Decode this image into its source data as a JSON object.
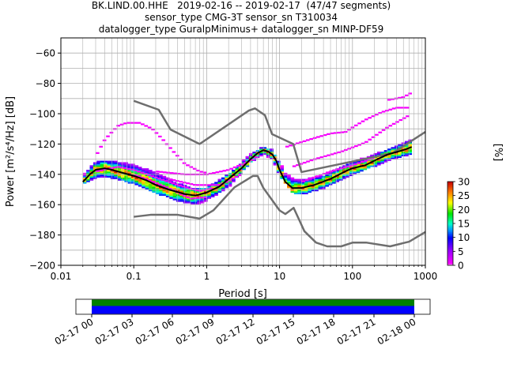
{
  "title_lines": [
    "BK.LIND.00.HHE   2019-02-16 -- 2019-02-17  (47/47 segments)",
    "sensor_type CMG-3T sensor_sn T310034",
    "datalogger_type GuralpMinimus+ datalogger_sn MINP-DF59"
  ],
  "colors": {
    "model_lines": "#6e6e6e",
    "mode_line": "#000000",
    "grid": "#b0b0b0",
    "coverage_data": "#0000ff",
    "coverage_used": "#008000"
  },
  "chart_data": {
    "type": "heatmap",
    "xlabel": "Period [s]",
    "ylabel": "Power [m²/s⁴/Hz] [dB]",
    "x_scale": "log",
    "xlim": [
      0.01,
      1000
    ],
    "ylim": [
      -200,
      -50
    ],
    "x_ticks": [
      {
        "value": 0.01,
        "label": "0.01"
      },
      {
        "value": 0.1,
        "label": "0.1"
      },
      {
        "value": 1,
        "label": "1"
      },
      {
        "value": 10,
        "label": "10"
      },
      {
        "value": 100,
        "label": "100"
      },
      {
        "value": 1000,
        "label": "1000"
      }
    ],
    "y_ticks": [
      -60,
      -80,
      -100,
      -120,
      -140,
      -160,
      -180,
      -200
    ],
    "grid": true,
    "colorbar": {
      "label": "[%]",
      "range": [
        0,
        30
      ],
      "ticks": [
        0,
        5,
        10,
        15,
        20,
        25,
        30
      ]
    },
    "noise_models": {
      "high": [
        [
          0.1,
          -91.5
        ],
        [
          0.22,
          -97.4
        ],
        [
          0.32,
          -110.5
        ],
        [
          0.8,
          -120
        ],
        [
          3.8,
          -97.9
        ],
        [
          4.6,
          -96.5
        ],
        [
          6.3,
          -101
        ],
        [
          7.9,
          -113.5
        ],
        [
          15.4,
          -120
        ],
        [
          20,
          -138.5
        ],
        [
          354.8,
          -126
        ],
        [
          1000,
          -112
        ]
      ],
      "low": [
        [
          0.1,
          -168
        ],
        [
          0.17,
          -166.7
        ],
        [
          0.4,
          -166.7
        ],
        [
          0.8,
          -169.2
        ],
        [
          1.24,
          -163.7
        ],
        [
          2.4,
          -148.6
        ],
        [
          4.3,
          -141.1
        ],
        [
          5,
          -141.1
        ],
        [
          6,
          -149
        ],
        [
          10,
          -163.8
        ],
        [
          12,
          -166.2
        ],
        [
          15.6,
          -162.1
        ],
        [
          21.9,
          -177.5
        ],
        [
          31.6,
          -185
        ],
        [
          45,
          -187.5
        ],
        [
          70,
          -187.5
        ],
        [
          101,
          -185
        ],
        [
          154,
          -185
        ],
        [
          328,
          -187.5
        ],
        [
          600,
          -184.4
        ],
        [
          1000,
          -178
        ]
      ]
    },
    "mode": [
      [
        0.02,
        -145
      ],
      [
        0.025,
        -140
      ],
      [
        0.03,
        -137
      ],
      [
        0.04,
        -136
      ],
      [
        0.05,
        -137
      ],
      [
        0.07,
        -139
      ],
      [
        0.1,
        -141
      ],
      [
        0.15,
        -144
      ],
      [
        0.2,
        -147
      ],
      [
        0.3,
        -150
      ],
      [
        0.5,
        -153
      ],
      [
        0.7,
        -154
      ],
      [
        1,
        -152
      ],
      [
        1.5,
        -148
      ],
      [
        2,
        -143
      ],
      [
        3,
        -136
      ],
      [
        4,
        -130
      ],
      [
        5,
        -126
      ],
      [
        6,
        -124
      ],
      [
        7,
        -125
      ],
      [
        8,
        -127
      ],
      [
        9,
        -131
      ],
      [
        10,
        -137
      ],
      [
        12,
        -145
      ],
      [
        15,
        -149
      ],
      [
        20,
        -149
      ],
      [
        30,
        -147
      ],
      [
        50,
        -143
      ],
      [
        80,
        -138
      ],
      [
        100,
        -136
      ],
      [
        150,
        -134
      ],
      [
        200,
        -131
      ],
      [
        300,
        -127
      ],
      [
        500,
        -124
      ],
      [
        650,
        -122
      ]
    ],
    "spread_low": [
      [
        0.02,
        -146
      ],
      [
        0.03,
        -142
      ],
      [
        0.05,
        -142
      ],
      [
        0.1,
        -146
      ],
      [
        0.2,
        -152
      ],
      [
        0.4,
        -157
      ],
      [
        0.7,
        -160
      ],
      [
        1,
        -157
      ],
      [
        2,
        -148
      ],
      [
        4,
        -132
      ],
      [
        6,
        -126
      ],
      [
        8,
        -130
      ],
      [
        10,
        -140
      ],
      [
        15,
        -152
      ],
      [
        20,
        -153
      ],
      [
        40,
        -149
      ],
      [
        100,
        -140
      ],
      [
        300,
        -131
      ],
      [
        650,
        -126
      ]
    ],
    "spread_high": [
      [
        0.02,
        -141
      ],
      [
        0.03,
        -132
      ],
      [
        0.05,
        -131
      ],
      [
        0.1,
        -134
      ],
      [
        0.2,
        -139
      ],
      [
        0.4,
        -146
      ],
      [
        0.7,
        -150
      ],
      [
        1,
        -149
      ],
      [
        2,
        -140
      ],
      [
        4,
        -127
      ],
      [
        6,
        -122
      ],
      [
        8,
        -124
      ],
      [
        10,
        -133
      ],
      [
        15,
        -143
      ],
      [
        20,
        -144
      ],
      [
        40,
        -141
      ],
      [
        100,
        -132
      ],
      [
        300,
        -124
      ],
      [
        650,
        -117
      ]
    ],
    "outliers": [
      [
        [
          0.03,
          -128
        ],
        [
          0.04,
          -117
        ],
        [
          0.06,
          -108
        ],
        [
          0.08,
          -106
        ],
        [
          0.12,
          -106
        ],
        [
          0.18,
          -110
        ],
        [
          0.25,
          -117
        ],
        [
          0.35,
          -125
        ],
        [
          0.5,
          -133
        ],
        [
          0.8,
          -138
        ],
        [
          1,
          -139
        ]
      ],
      [
        [
          0.03,
          -138
        ],
        [
          0.06,
          -135
        ],
        [
          0.1,
          -137
        ],
        [
          0.2,
          -142
        ],
        [
          0.4,
          -147
        ],
        [
          0.8,
          -151
        ],
        [
          1.2,
          -149
        ]
      ],
      [
        [
          0.2,
          -138
        ],
        [
          0.5,
          -140
        ],
        [
          1,
          -140
        ],
        [
          2,
          -137
        ],
        [
          4,
          -131
        ],
        [
          5,
          -128
        ]
      ],
      [
        [
          0.1,
          -140
        ],
        [
          0.3,
          -149
        ],
        [
          0.6,
          -156
        ],
        [
          1,
          -155
        ]
      ],
      [
        [
          0.3,
          -143
        ],
        [
          0.7,
          -147
        ],
        [
          1.5,
          -147
        ],
        [
          3,
          -140
        ]
      ],
      [
        [
          12,
          -122
        ],
        [
          30,
          -116
        ],
        [
          50,
          -113
        ],
        [
          80,
          -112
        ],
        [
          100,
          -109
        ],
        [
          150,
          -104
        ],
        [
          250,
          -99
        ],
        [
          400,
          -96
        ],
        [
          600,
          -96
        ]
      ],
      [
        [
          15,
          -135
        ],
        [
          30,
          -130
        ],
        [
          70,
          -125
        ],
        [
          150,
          -119
        ],
        [
          300,
          -109
        ],
        [
          600,
          -101
        ]
      ],
      [
        [
          300,
          -91
        ],
        [
          500,
          -89
        ],
        [
          650,
          -86
        ]
      ],
      [
        [
          20,
          -145
        ],
        [
          50,
          -138
        ],
        [
          100,
          -134
        ],
        [
          200,
          -129
        ]
      ]
    ]
  },
  "coverage": {
    "tick_labels": [
      "02-17 00",
      "02-17 03",
      "02-17 06",
      "02-17 09",
      "02-17 12",
      "02-17 15",
      "02-17 18",
      "02-17 21",
      "02-18 00"
    ],
    "data_start_hours": 0,
    "data_end_hours": 24
  }
}
